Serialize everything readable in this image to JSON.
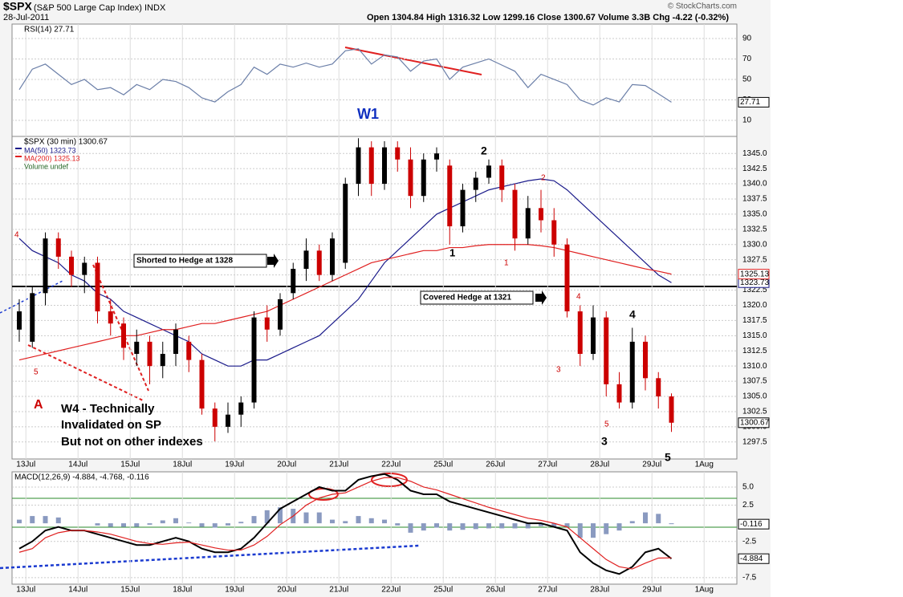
{
  "header": {
    "symbol": "$SPX",
    "name": "(S&P 500 Large Cap Index) INDX",
    "date": "28-Jul-2011",
    "quote": "Open 1304.84  High 1316.32  Low 1299.16  Close 1300.67  Volume 3.3B  Chg -4.22 (-0.32%)",
    "credit": "© StockCharts.com"
  },
  "chart_data": [
    {
      "type": "line",
      "grid": true,
      "categories": [
        null,
        "13Jul",
        null,
        null,
        null,
        "14Jul",
        null,
        null,
        null,
        "15Jul",
        null,
        null,
        null,
        "18Jul",
        null,
        null,
        null,
        "19Jul",
        null,
        null,
        null,
        "20Jul",
        null,
        null,
        null,
        "21Jul",
        null,
        null,
        null,
        "22Jul",
        null,
        null,
        null,
        "25Jul",
        null,
        null,
        null,
        "26Jul",
        null,
        null,
        null,
        "27Jul",
        null,
        null,
        null,
        "28Jul",
        null,
        null,
        null,
        "29Jul",
        null,
        null,
        null,
        "1Aug"
      ],
      "series": [
        {
          "name": "RSI(14) 27.71",
          "color": "#6b7fa8",
          "last_label": "27.71",
          "values": [
            40,
            60,
            65,
            55,
            45,
            50,
            40,
            42,
            35,
            45,
            40,
            50,
            48,
            42,
            32,
            28,
            38,
            45,
            62,
            55,
            65,
            62,
            66,
            62,
            65,
            78,
            80,
            65,
            74,
            72,
            58,
            68,
            70,
            50,
            62,
            66,
            70,
            64,
            58,
            42,
            55,
            50,
            45,
            30,
            25,
            32,
            28,
            45,
            44,
            36,
            27.71,
            null,
            null,
            null
          ]
        }
      ],
      "ylim": [
        -5.7,
        104.1
      ],
      "yticks": [
        10,
        30,
        50,
        70,
        90
      ],
      "annotations": [
        {
          "text": "W1",
          "color": "#1030c0"
        }
      ]
    },
    {
      "type": "candlestick",
      "grid": true,
      "name": "$SPX (30 min) 1300.67",
      "last_label": "1300.67",
      "extra_legend": "Volume undef",
      "categories": [
        null,
        "13Jul",
        null,
        null,
        null,
        "14Jul",
        null,
        null,
        null,
        "15Jul",
        null,
        null,
        null,
        "18Jul",
        null,
        null,
        null,
        "19Jul",
        null,
        null,
        null,
        "20Jul",
        null,
        null,
        null,
        "21Jul",
        null,
        null,
        null,
        "22Jul",
        null,
        null,
        null,
        "25Jul",
        null,
        null,
        null,
        "26Jul",
        null,
        null,
        null,
        "27Jul",
        null,
        null,
        null,
        "28Jul",
        null,
        null,
        null,
        "29Jul",
        null,
        null,
        null,
        "1Aug"
      ],
      "open": [
        1316,
        1314,
        1322,
        1331,
        1328,
        1325,
        1327,
        1319,
        1317,
        1312,
        1314,
        1310,
        1312,
        1314,
        1311,
        1303,
        1300,
        1302,
        1304,
        1318,
        1316,
        1322,
        1326,
        1329,
        1325,
        1327,
        1340,
        1346,
        1340,
        1346,
        1344,
        1338,
        1344,
        1343,
        1333,
        1339,
        1341,
        1343,
        1339,
        1331,
        1336,
        1334,
        1330,
        1319,
        1312,
        1318,
        1307,
        1304,
        1314,
        1308,
        1305,
        null,
        null,
        null
      ],
      "high": [
        1321,
        1323,
        1332,
        1332,
        1329,
        1328,
        1328,
        1321,
        1318,
        1316,
        1315,
        1314,
        1317,
        1315,
        1312,
        1304,
        1304,
        1305,
        1319,
        1320,
        1322,
        1327,
        1331,
        1330,
        1332,
        1341,
        1347.5,
        1347,
        1347,
        1347,
        1346,
        1345,
        1346,
        1344,
        1340,
        1342,
        1344,
        1344,
        1340,
        1338,
        1339,
        1336,
        1331,
        1320,
        1320,
        1319,
        1309,
        1316.3,
        1315,
        1309,
        1305.5,
        null,
        null,
        null
      ],
      "low": [
        1314,
        1313,
        1320,
        1326,
        1323,
        1322,
        1317,
        1315,
        1311,
        1310,
        1307,
        1308,
        1310,
        1309,
        1302,
        1297.6,
        1299,
        1300,
        1303,
        1314,
        1315,
        1321,
        1324,
        1324,
        1324,
        1326,
        1338,
        1338,
        1339,
        1342,
        1336,
        1337,
        1342,
        1330,
        1332,
        1337,
        1340,
        1337,
        1329,
        1330,
        1332,
        1328,
        1318,
        1310,
        1311,
        1305,
        1303,
        1303,
        1306,
        1303,
        1299.16,
        null,
        null,
        null
      ],
      "close": [
        1319,
        1322,
        1331,
        1328,
        1325,
        1327,
        1319,
        1317,
        1313,
        1314,
        1310,
        1312,
        1316,
        1311,
        1303,
        1300,
        1302,
        1304,
        1318,
        1316,
        1321,
        1326,
        1329,
        1325,
        1331,
        1340,
        1346,
        1340,
        1346,
        1344,
        1338,
        1344,
        1345,
        1333,
        1339,
        1341,
        1343,
        1339,
        1331,
        1336,
        1334,
        1330,
        1319,
        1312,
        1318,
        1307,
        1304,
        1314,
        1308,
        1305,
        1300.67,
        null,
        null,
        null
      ],
      "up_color": "#000000",
      "down_color": "#cc0000",
      "series": [
        {
          "name": "MA(50) 1323.73",
          "color": "#1a1a8a",
          "last_label": "1323.73",
          "values": [
            1331,
            1329,
            1328,
            1327,
            1325,
            1324,
            1322,
            1321,
            1319,
            1318,
            1317,
            1316,
            1315,
            1314,
            1312,
            1311,
            1310,
            1310,
            1311,
            1311,
            1312,
            1313,
            1314,
            1315,
            1317,
            1319,
            1321,
            1324,
            1327,
            1329,
            1331,
            1333,
            1335,
            1336,
            1337,
            1338,
            1339,
            1339.5,
            1340,
            1340.5,
            1340.8,
            1340.5,
            1339,
            1337,
            1335,
            1333,
            1331,
            1329,
            1327,
            1325,
            1323.73,
            null,
            null,
            null
          ]
        },
        {
          "name": "MA(200) 1325.13",
          "color": "#e02020",
          "last_label": "1325.13",
          "values": [
            1311,
            1311.5,
            1312,
            1312.5,
            1313,
            1313.5,
            1314,
            1314.5,
            1315,
            1315,
            1315.5,
            1316,
            1316,
            1316.5,
            1317,
            1317,
            1317.5,
            1318,
            1318.5,
            1319,
            1320,
            1321,
            1322,
            1323,
            1324,
            1325,
            1326,
            1327,
            1327.5,
            1328,
            1328.5,
            1329,
            1329,
            1329.5,
            1329.5,
            1329.8,
            1330,
            1330,
            1330,
            1330,
            1329.8,
            1329.5,
            1329,
            1328.5,
            1328,
            1327.5,
            1327,
            1326.5,
            1326,
            1325.6,
            1325.13,
            null,
            null,
            null
          ]
        }
      ],
      "ylim": [
        1294.7,
        1347.8
      ],
      "yticks": [
        1297.5,
        {
          "value": 1300,
          "label": "1300.0"
        },
        1302.5,
        {
          "value": 1305,
          "label": "1305.0"
        },
        1307.5,
        {
          "value": 1310,
          "label": "1310.0"
        },
        1312.5,
        {
          "value": 1315,
          "label": "1315.0"
        },
        1317.5,
        {
          "value": 1320,
          "label": "1320.0"
        },
        1322.5,
        {
          "value": 1325,
          "label": "1325.0"
        },
        1327.5,
        {
          "value": 1330,
          "label": "1330.0"
        },
        1332.5,
        {
          "value": 1335,
          "label": "1335.0"
        },
        1337.5,
        {
          "value": 1340,
          "label": "1340.0"
        },
        1342.5,
        {
          "value": 1345,
          "label": "1345.0"
        }
      ],
      "annotations": [
        {
          "text": "4",
          "color": "#cc0000"
        },
        {
          "text": "5",
          "color": "#cc0000"
        },
        {
          "text": "A",
          "color": "#cc0000"
        },
        {
          "text": "W4 - Technically",
          "color": "#000000"
        },
        {
          "text": "Invalidated on SP",
          "color": "#000000"
        },
        {
          "text": "But not on other indexes",
          "color": "#000000"
        },
        {
          "text": "Shorted to Hedge at 1328",
          "color": "#000000"
        },
        {
          "text": "Covered Hedge at 1321",
          "color": "#000000"
        },
        {
          "text": "1",
          "color": "#000000"
        },
        {
          "text": "2",
          "color": "#000000"
        },
        {
          "text": "2",
          "color": "#cc0000"
        },
        {
          "text": "1",
          "color": "#cc0000"
        },
        {
          "text": "4",
          "color": "#cc0000"
        },
        {
          "text": "3",
          "color": "#cc0000"
        },
        {
          "text": "5",
          "color": "#cc0000"
        },
        {
          "text": "4",
          "color": "#000000"
        },
        {
          "text": "3",
          "color": "#000000"
        },
        {
          "text": "5",
          "color": "#000000"
        }
      ]
    },
    {
      "type": "macd",
      "grid": true,
      "title": "MACD(12,26,9) -4.884, -4.768, -0.116",
      "categories": [
        null,
        "13Jul",
        null,
        null,
        null,
        "14Jul",
        null,
        null,
        null,
        "15Jul",
        null,
        null,
        null,
        "18Jul",
        null,
        null,
        null,
        "19Jul",
        null,
        null,
        null,
        "20Jul",
        null,
        null,
        null,
        "21Jul",
        null,
        null,
        null,
        "22Jul",
        null,
        null,
        null,
        "25Jul",
        null,
        null,
        null,
        "26Jul",
        null,
        null,
        null,
        "27Jul",
        null,
        null,
        null,
        "28Jul",
        null,
        null,
        null,
        "29Jul",
        null,
        null,
        null,
        "1Aug"
      ],
      "series": [
        {
          "type": "bar",
          "color": "#8a9ac0",
          "last_label": "-0.116",
          "values": [
            0.5,
            1,
            1,
            0.8,
            0,
            0,
            -0.3,
            -0.5,
            -0.5,
            -0.5,
            -0.2,
            0.4,
            0.7,
            0.1,
            -0.5,
            -0.6,
            -0.3,
            0.2,
            1,
            1.8,
            2.2,
            2,
            1.5,
            1.5,
            0.5,
            0.3,
            1,
            0.7,
            0.5,
            -0.3,
            -1.3,
            -1,
            -0.6,
            -1,
            -0.9,
            -0.8,
            -0.7,
            -0.7,
            -0.7,
            -0.7,
            -0.4,
            -0.5,
            -0.5,
            -2,
            -2,
            -1.5,
            -1,
            0.3,
            1.5,
            1.3,
            -0.116,
            null,
            null,
            null
          ]
        },
        {
          "type": "line",
          "color": "#000000",
          "last_label": "-4.884",
          "values": [
            -3.5,
            -2.5,
            -1,
            -0.5,
            -1,
            -1,
            -1.5,
            -2,
            -2.5,
            -3,
            -3,
            -2.5,
            -2,
            -2.5,
            -3.5,
            -4,
            -4,
            -3.5,
            -2,
            0,
            2,
            3,
            4,
            5,
            4.5,
            4.5,
            6,
            6.5,
            6.8,
            6,
            4.5,
            4,
            4,
            3,
            2.5,
            2,
            1.5,
            1,
            0.5,
            0,
            0,
            -0.5,
            -1,
            -4,
            -5.5,
            -6.5,
            -7,
            -6,
            -4,
            -3.5,
            -4.884,
            null,
            null,
            null
          ]
        },
        {
          "type": "line",
          "color": "#e02020",
          "values": [
            -4,
            -3.5,
            -2,
            -1.3,
            -1,
            -1,
            -1.2,
            -1.5,
            -2,
            -2.5,
            -2.8,
            -2.9,
            -2.7,
            -2.6,
            -3,
            -3.4,
            -3.7,
            -3.7,
            -3,
            -1.8,
            -0.2,
            1,
            2.5,
            3.5,
            4,
            4.2,
            5,
            5.8,
            6.3,
            6.3,
            5.8,
            5,
            4.6,
            4,
            3.4,
            2.8,
            2.2,
            1.7,
            1.2,
            0.7,
            0.4,
            0,
            -0.5,
            -2,
            -3.5,
            -5,
            -6,
            -6.3,
            -5.5,
            -4.8,
            -4.768,
            null,
            null,
            null
          ]
        }
      ],
      "ylim": [
        -8.4,
        7.1
      ],
      "yticks": [
        {
          "value": 5,
          "label": "5.0"
        },
        2.5,
        -2.5,
        -7.5
      ]
    }
  ]
}
